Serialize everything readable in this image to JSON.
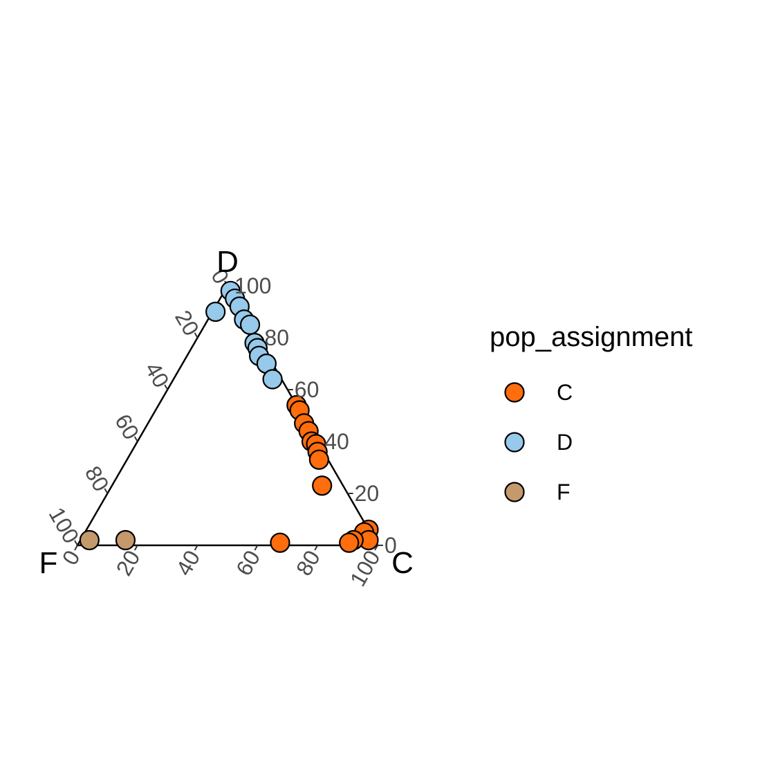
{
  "chart_data": {
    "type": "scatter",
    "subtype": "ternary",
    "axes": {
      "top": "D",
      "left": "F",
      "right": "C"
    },
    "ticks": [
      "0",
      "20",
      "40",
      "60",
      "80",
      "100"
    ],
    "legend": {
      "title": "pop_assignment",
      "position": "right",
      "entries": [
        {
          "label": "C",
          "color": "#ff6d0c"
        },
        {
          "label": "D",
          "color": "#96c9ea"
        },
        {
          "label": "F",
          "color": "#c49a6c"
        }
      ]
    },
    "grid": false,
    "points": [
      {
        "group": "C",
        "C": 46,
        "D": 54,
        "F": 0
      },
      {
        "group": "C",
        "C": 48,
        "D": 52,
        "F": 0
      },
      {
        "group": "C",
        "C": 52,
        "D": 47,
        "F": 1
      },
      {
        "group": "C",
        "C": 55,
        "D": 44,
        "F": 1
      },
      {
        "group": "C",
        "C": 58,
        "D": 40,
        "F": 2
      },
      {
        "group": "C",
        "C": 60,
        "D": 39,
        "F": 1
      },
      {
        "group": "C",
        "C": 62,
        "D": 36,
        "F": 2
      },
      {
        "group": "C",
        "C": 64,
        "D": 33,
        "F": 3
      },
      {
        "group": "C",
        "C": 70,
        "D": 23,
        "F": 7
      },
      {
        "group": "C",
        "C": 94,
        "D": 6,
        "F": 0
      },
      {
        "group": "C",
        "C": 93,
        "D": 5,
        "F": 2
      },
      {
        "group": "C",
        "C": 96,
        "D": 2,
        "F": 2
      },
      {
        "group": "C",
        "C": 91,
        "D": 2,
        "F": 7
      },
      {
        "group": "C",
        "C": 90,
        "D": 1,
        "F": 9
      },
      {
        "group": "C",
        "C": 67,
        "D": 1,
        "F": 32
      },
      {
        "group": "D",
        "C": 2,
        "D": 99,
        "F": -1
      },
      {
        "group": "D",
        "C": 5,
        "D": 96,
        "F": -1
      },
      {
        "group": "D",
        "C": 8,
        "D": 92,
        "F": 0
      },
      {
        "group": "D",
        "C": 12,
        "D": 87,
        "F": 1
      },
      {
        "group": "D",
        "C": 15,
        "D": 85,
        "F": 0
      },
      {
        "group": "D",
        "C": 20,
        "D": 78,
        "F": 2
      },
      {
        "group": "D",
        "C": 22,
        "D": 76,
        "F": 2
      },
      {
        "group": "D",
        "C": 24,
        "D": 73,
        "F": 3
      },
      {
        "group": "D",
        "C": 28,
        "D": 70,
        "F": 2
      },
      {
        "group": "D",
        "C": 33,
        "D": 64,
        "F": 3
      },
      {
        "group": "D",
        "C": 1,
        "D": 90,
        "F": 9
      },
      {
        "group": "F",
        "C": 3,
        "D": 2,
        "F": 95
      },
      {
        "group": "F",
        "C": 15,
        "D": 2,
        "F": 83
      }
    ]
  }
}
